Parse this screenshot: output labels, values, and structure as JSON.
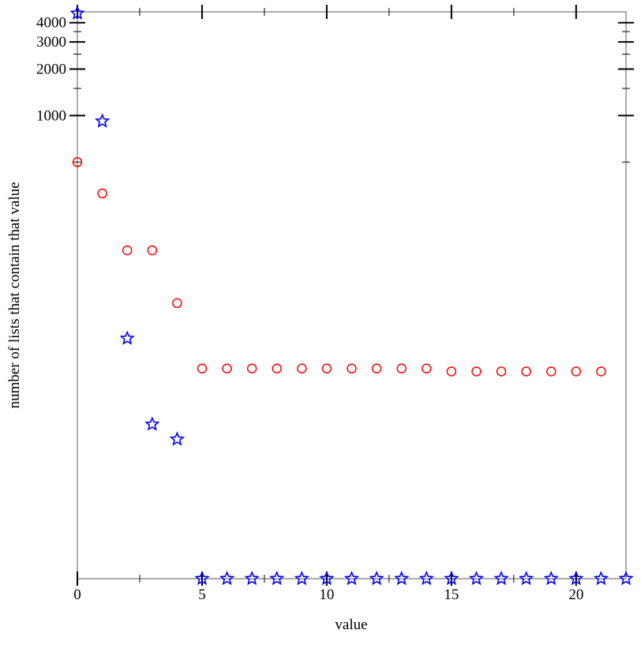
{
  "chart_data": {
    "type": "scatter",
    "title": "",
    "xlabel": "value",
    "ylabel": "number of lists that contain that value",
    "xlim": [
      0,
      22
    ],
    "ylim": [
      1,
      4700
    ],
    "yscale": "log",
    "grid": false,
    "x_ticks": [
      0,
      5,
      10,
      15,
      20
    ],
    "y_ticks": [
      1000,
      2000,
      3000,
      4000
    ],
    "series": [
      {
        "marker": "circle",
        "color": "#ff0000",
        "x": [
          0,
          1,
          2,
          3,
          4,
          5,
          6,
          7,
          8,
          9,
          10,
          11,
          12,
          13,
          14,
          15,
          16,
          17,
          18,
          19,
          20,
          21
        ],
        "y": [
          500,
          313,
          134,
          134,
          61,
          23,
          23,
          23,
          23,
          23,
          23,
          23,
          23,
          23,
          23,
          22,
          22,
          22,
          22,
          22,
          22,
          22
        ]
      },
      {
        "marker": "star",
        "color": "#0000ff",
        "x": [
          0,
          1,
          2,
          3,
          4,
          5,
          6,
          7,
          8,
          9,
          10,
          11,
          12,
          13,
          14,
          15,
          16,
          17,
          18,
          19,
          20,
          21,
          22
        ],
        "y": [
          4600,
          920,
          36,
          10,
          8,
          1,
          1,
          1,
          1,
          1,
          1,
          1,
          1,
          1,
          1,
          1,
          1,
          1,
          1,
          1,
          1,
          1,
          1
        ]
      }
    ]
  }
}
